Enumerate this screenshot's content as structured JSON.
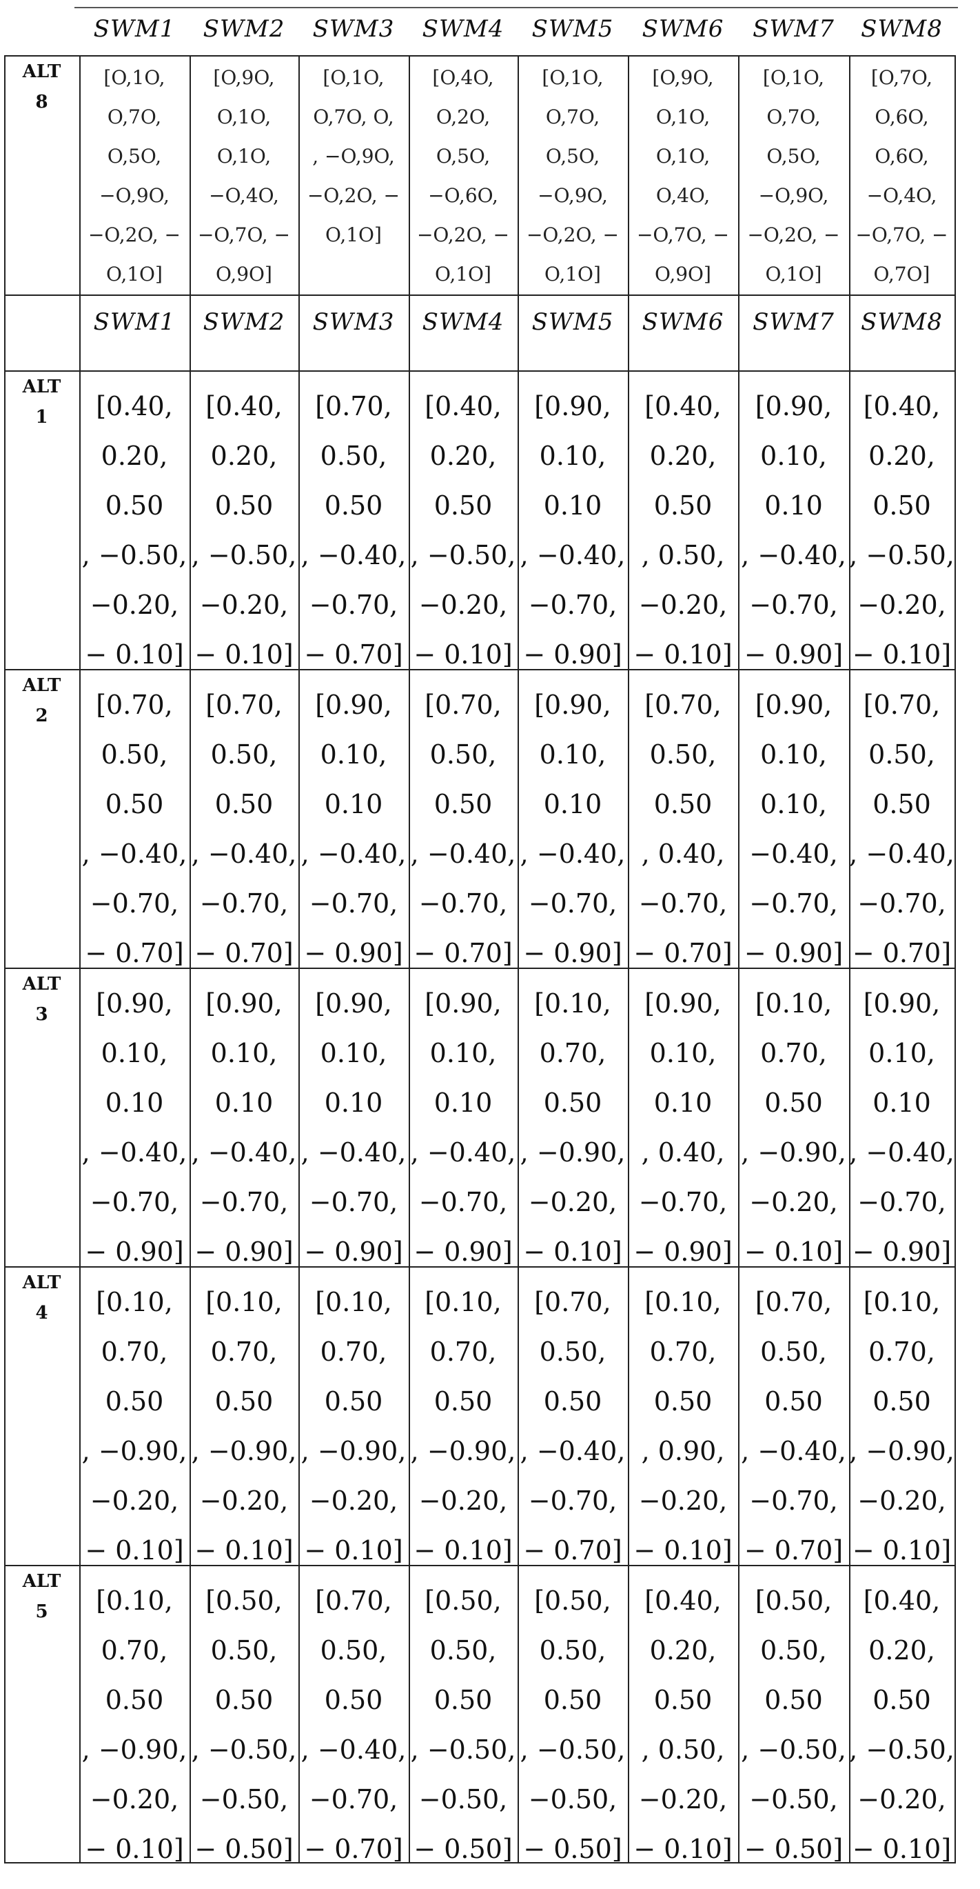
{
  "columns": [
    "SWM1",
    "SWM2",
    "SWM3",
    "SWM4",
    "SWM5",
    "SWM6",
    "SWM7",
    "SWM8"
  ],
  "rows": [
    {
      "label": "ALT\n8",
      "style": "small",
      "cells": [
        "[O,1O,\nO,7O,\nO,5O,\n−O,9O,\n−O,2O, −\nO,1O]",
        "[O,9O,\nO,1O,\nO,1O,\n−O,4O,\n−O,7O, −\nO,9O]",
        "[O,1O,\nO,7O, O,\n, −O,9O,\n−O,2O, −\nO,1O]",
        "[O,4O,\nO,2O,\nO,5O,\n−O,6O,\n−O,2O, −\nO,1O]",
        "[O,1O,\nO,7O,\nO,5O,\n−O,9O,\n−O,2O, −\nO,1O]",
        "[O,9O,\nO,1O,\nO,1O,\nO,4O,\n−O,7O, −\nO,9O]",
        "[O,1O,\nO,7O,\nO,5O,\n−O,9O,\n−O,2O, −\nO,1O]",
        "[O,7O,\nO,6O,\nO,6O,\n−O,4O,\n−O,7O, −\nO,7O]"
      ]
    },
    {
      "label": "",
      "style": "header",
      "cells": [
        "SWM1",
        "SWM2",
        "SWM3",
        "SWM4",
        "SWM5",
        "SWM6",
        "SWM7",
        "SWM8"
      ]
    },
    {
      "label": "ALT\n1",
      "style": "big",
      "cells": [
        "[0.40,\n0.20,\n0.50\n, −0.50,\n−0.20,\n− 0.10]",
        "[0.40,\n0.20,\n0.50\n, −0.50,\n−0.20,\n− 0.10]",
        "[0.70,\n0.50,\n0.50\n, −0.40,\n−0.70,\n− 0.70]",
        "[0.40,\n0.20,\n0.50\n, −0.50,\n−0.20,\n− 0.10]",
        "[0.90,\n0.10,\n0.10\n, −0.40,\n−0.70,\n− 0.90]",
        "[0.40,\n0.20,\n0.50\n, 0.50,\n−0.20,\n− 0.10]",
        "[0.90,\n0.10,\n0.10\n, −0.40,\n−0.70,\n− 0.90]",
        "[0.40,\n0.20,\n0.50\n, −0.50,\n−0.20,\n− 0.10]"
      ]
    },
    {
      "label": "ALT\n2",
      "style": "big",
      "cells": [
        "[0.70,\n0.50,\n0.50\n, −0.40,\n−0.70,\n− 0.70]",
        "[0.70,\n0.50,\n0.50\n, −0.40,\n−0.70,\n− 0.70]",
        "[0.90,\n0.10,\n0.10\n, −0.40,\n−0.70,\n− 0.90]",
        "[0.70,\n0.50,\n0.50\n, −0.40,\n−0.70,\n− 0.70]",
        "[0.90,\n0.10,\n0.10\n, −0.40,\n−0.70,\n− 0.90]",
        "[0.70,\n0.50,\n0.50\n, 0.40,\n−0.70,\n− 0.70]",
        "[0.90,\n0.10,\n0.10,\n−0.40,\n−0.70,\n− 0.90]",
        "[0.70,\n0.50,\n0.50\n, −0.40,\n−0.70,\n− 0.70]"
      ]
    },
    {
      "label": "ALT\n3",
      "style": "big",
      "cells": [
        "[0.90,\n0.10,\n0.10\n, −0.40,\n−0.70,\n− 0.90]",
        "[0.90,\n0.10,\n0.10\n, −0.40,\n−0.70,\n− 0.90]",
        "[0.90,\n0.10,\n0.10\n, −0.40,\n−0.70,\n− 0.90]",
        "[0.90,\n0.10,\n0.10\n, −0.40,\n−0.70,\n− 0.90]",
        "[0.10,\n0.70,\n0.50\n, −0.90,\n−0.20,\n− 0.10]",
        "[0.90,\n0.10,\n0.10\n, 0.40,\n−0.70,\n− 0.90]",
        "[0.10,\n0.70,\n0.50\n, −0.90,\n−0.20,\n− 0.10]",
        "[0.90,\n0.10,\n0.10\n, −0.40,\n−0.70,\n− 0.90]"
      ]
    },
    {
      "label": "ALT\n4",
      "style": "big",
      "cells": [
        "[0.10,\n0.70,\n0.50\n, −0.90,\n−0.20,\n− 0.10]",
        "[0.10,\n0.70,\n0.50\n, −0.90,\n−0.20,\n− 0.10]",
        "[0.10,\n0.70,\n0.50\n, −0.90,\n−0.20,\n− 0.10]",
        "[0.10,\n0.70,\n0.50\n, −0.90,\n−0.20,\n− 0.10]",
        "[0.70,\n0.50,\n0.50\n, −0.40,\n−0.70,\n− 0.70]",
        "[0.10,\n0.70,\n0.50\n, 0.90,\n−0.20,\n− 0.10]",
        "[0.70,\n0.50,\n0.50\n, −0.40,\n−0.70,\n− 0.70]",
        "[0.10,\n0.70,\n0.50\n, −0.90,\n−0.20,\n− 0.10]"
      ]
    },
    {
      "label": "ALT\n5",
      "style": "big",
      "cells": [
        "[0.10,\n0.70,\n0.50\n, −0.90,\n−0.20,\n− 0.10]",
        "[0.50,\n0.50,\n0.50\n, −0.50,\n−0.50,\n− 0.50]",
        "[0.70,\n0.50,\n0.50\n, −0.40,\n−0.70,\n− 0.70]",
        "[0.50,\n0.50,\n0.50\n, −0.50,\n−0.50,\n− 0.50]",
        "[0.50,\n0.50,\n0.50\n, −0.50,\n−0.50,\n− 0.50]",
        "[0.40,\n0.20,\n0.50\n, 0.50,\n−0.20,\n− 0.10]",
        "[0.50,\n0.50,\n0.50\n, −0.50,\n−0.50,\n− 0.50]",
        "[0.40,\n0.20,\n0.50\n, −0.50,\n−0.20,\n− 0.10]"
      ]
    }
  ]
}
